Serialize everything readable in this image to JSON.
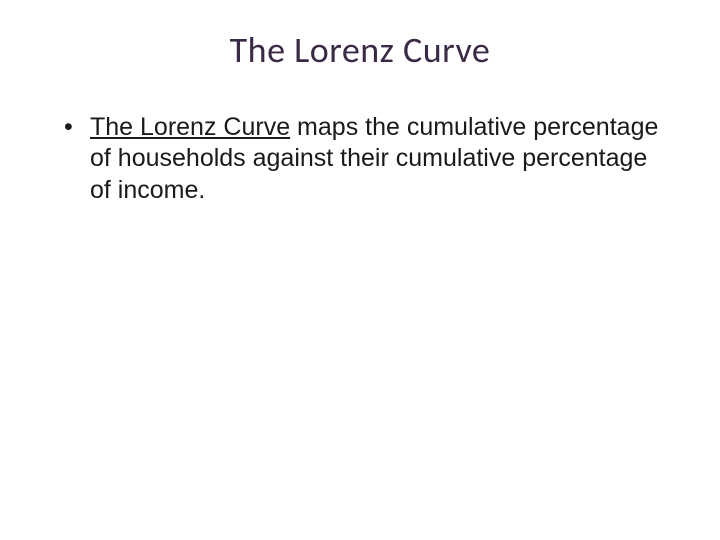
{
  "slide": {
    "title": "The Lorenz Curve",
    "title_color": "#3b2a45",
    "title_fontsize": 36,
    "background_color": "#ffffff",
    "bullet": {
      "underlined_phrase": "The Lorenz Curve",
      "rest_text": " maps the cumulative percentage of households against their cumulative percentage of income.",
      "fontsize": 25,
      "text_color": "#1a1a1a"
    }
  }
}
